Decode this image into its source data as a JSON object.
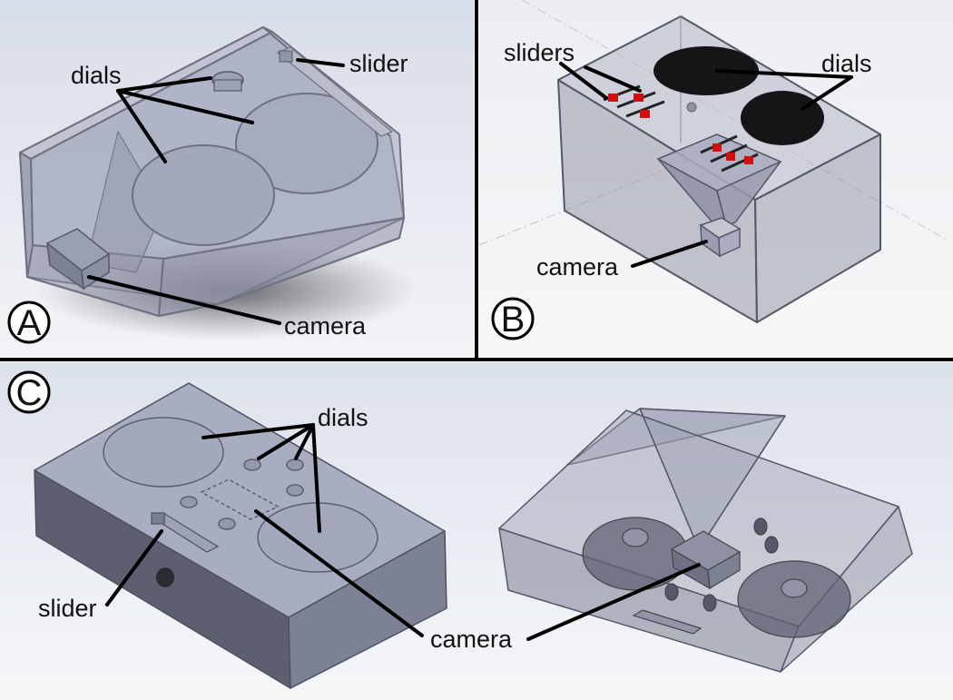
{
  "panels": [
    {
      "id": "A",
      "badge": "A",
      "labels": {
        "dials": "dials",
        "slider": "slider",
        "camera": "camera"
      }
    },
    {
      "id": "B",
      "badge": "B",
      "labels": {
        "sliders": "sliders",
        "dials": "dials",
        "camera": "camera"
      }
    },
    {
      "id": "C",
      "badge": "C",
      "labels": {
        "dials": "dials",
        "slider": "slider",
        "camera": "camera"
      }
    }
  ],
  "colors": {
    "background_gradient_top": "#dde3ec",
    "background_gradient_bottom": "#f6f7f9",
    "divider": "#000000",
    "glass": "#a9adbf",
    "solid_box": "#8c90a4",
    "dark_dial": "#151518",
    "slider_knob": "#d01010"
  }
}
